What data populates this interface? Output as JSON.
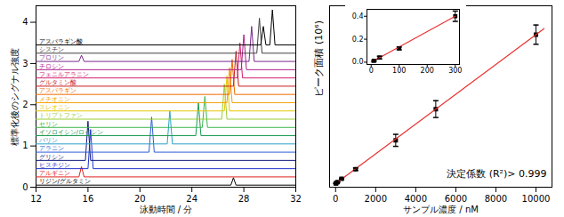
{
  "chart_data": [
    {
      "type": "line",
      "x_label": "泳動時間 / 分",
      "y_label": "標準化後のシグナル強度",
      "xlim": [
        12,
        32
      ],
      "xticks": [
        12,
        16,
        20,
        24,
        28,
        32
      ],
      "ylim": [
        0,
        4.4
      ],
      "yticks": [
        0,
        1,
        2,
        3,
        4
      ],
      "series": [
        {
          "name": "リジン/グルタミン",
          "color": "#000000",
          "x": [
            12,
            27.0,
            27.2,
            27.4,
            32
          ],
          "values": [
            0.05,
            0.05,
            0.23,
            0.05,
            0.05
          ]
        },
        {
          "name": "アルギニン",
          "color": "#e0201b",
          "x": [
            12,
            15.3,
            15.5,
            15.7,
            32
          ],
          "values": [
            0.25,
            0.25,
            0.5,
            0.25,
            0.25
          ]
        },
        {
          "name": "ヒスチジン",
          "color": "#2233cc",
          "x": [
            12,
            16.0,
            16.2,
            16.4,
            32
          ],
          "values": [
            0.45,
            0.45,
            1.4,
            0.45,
            0.45
          ]
        },
        {
          "name": "グリシン",
          "color": "#101a7a",
          "x": [
            12,
            15.8,
            16.0,
            16.2,
            32
          ],
          "values": [
            0.65,
            0.65,
            1.6,
            0.65,
            0.65
          ]
        },
        {
          "name": "アラニン",
          "color": "#2a5cd6",
          "x": [
            12,
            20.7,
            20.9,
            21.1,
            32
          ],
          "values": [
            0.85,
            0.85,
            1.7,
            0.85,
            0.85
          ]
        },
        {
          "name": "バリン",
          "color": "#2aa0c8",
          "x": [
            12,
            22.1,
            22.3,
            22.5,
            32
          ],
          "values": [
            1.05,
            1.05,
            1.85,
            1.05,
            1.05
          ]
        },
        {
          "name": "イソロイシン/ロイシン",
          "color": "#1a9a50",
          "x": [
            12,
            24.3,
            24.5,
            24.7,
            32
          ],
          "values": [
            1.25,
            1.25,
            2.05,
            1.25,
            1.25
          ]
        },
        {
          "name": "セリン",
          "color": "#3cb44b",
          "x": [
            12,
            24.8,
            25.0,
            25.2,
            32
          ],
          "values": [
            1.45,
            1.45,
            2.2,
            1.45,
            1.45
          ]
        },
        {
          "name": "トリプトファン",
          "color": "#9acd32",
          "x": [
            12,
            26.3,
            26.5,
            26.7,
            32
          ],
          "values": [
            1.65,
            1.65,
            2.5,
            1.65,
            1.65
          ]
        },
        {
          "name": "スレオニン",
          "color": "#e6c700",
          "x": [
            12,
            26.5,
            26.7,
            26.9,
            32
          ],
          "values": [
            1.85,
            1.85,
            2.7,
            1.85,
            1.85
          ]
        },
        {
          "name": "メチオニン",
          "color": "#f5a000",
          "x": [
            12,
            26.7,
            26.9,
            27.1,
            32
          ],
          "values": [
            2.05,
            2.05,
            2.9,
            2.05,
            2.05
          ]
        },
        {
          "name": "アスパラギン",
          "color": "#f06a00",
          "x": [
            12,
            26.9,
            27.1,
            27.3,
            32
          ],
          "values": [
            2.25,
            2.25,
            3.1,
            2.25,
            2.25
          ]
        },
        {
          "name": "グルタミン酸",
          "color": "#c81e1e",
          "x": [
            12,
            27.2,
            27.4,
            27.6,
            32
          ],
          "values": [
            2.45,
            2.45,
            3.3,
            2.45,
            2.45
          ]
        },
        {
          "name": "フェニルアラニン",
          "color": "#d0206e",
          "x": [
            12,
            27.5,
            27.7,
            27.9,
            32
          ],
          "values": [
            2.65,
            2.65,
            3.5,
            2.65,
            2.65
          ]
        },
        {
          "name": "チロシン",
          "color": "#b0208c",
          "x": [
            12,
            27.8,
            28.0,
            28.2,
            32
          ],
          "values": [
            2.85,
            2.85,
            3.7,
            2.85,
            2.85
          ]
        },
        {
          "name": "プロリン",
          "color": "#7a2a8a",
          "x": [
            12,
            15.3,
            15.5,
            15.7,
            28.4,
            28.6,
            28.8,
            32
          ],
          "values": [
            3.05,
            3.05,
            3.2,
            3.05,
            3.05,
            3.9,
            3.05,
            3.05
          ]
        },
        {
          "name": "シスチン",
          "color": "#404040",
          "x": [
            12,
            29.0,
            29.2,
            29.4,
            32
          ],
          "values": [
            3.25,
            3.25,
            4.1,
            3.25,
            3.25
          ]
        },
        {
          "name": "アスパラギン酸",
          "color": "#000000",
          "x": [
            12,
            29.3,
            29.5,
            29.7,
            30.0,
            30.2,
            30.4,
            32
          ],
          "values": [
            3.45,
            3.45,
            3.9,
            3.45,
            3.45,
            4.3,
            3.45,
            3.45
          ]
        }
      ]
    },
    {
      "type": "scatter",
      "x_label": "サンプル濃度 / nM",
      "y_label": "ピーク面積 (10⁶)",
      "annotation": "決定係数 (R²)> 0.999",
      "xlim": [
        -300,
        10800
      ],
      "xticks": [
        0,
        2000,
        4000,
        6000,
        8000,
        10000
      ],
      "ylim": [
        -0.03,
        1.48
      ],
      "tick_labels": "x",
      "series": [
        {
          "type": "scatter",
          "color": "#000000",
          "marker": "square",
          "x": [
            10,
            30,
            100,
            300,
            1000,
            3000,
            5000,
            10000
          ],
          "values": [
            0.001,
            0.004,
            0.012,
            0.04,
            0.12,
            0.36,
            0.62,
            1.24
          ],
          "errors": [
            0.002,
            0.003,
            0.004,
            0.006,
            0.01,
            0.05,
            0.07,
            0.08
          ]
        },
        {
          "type": "line",
          "color": "#e8312f",
          "x": [
            0,
            10400
          ],
          "values": [
            0,
            1.29
          ]
        }
      ]
    },
    {
      "type": "scatter",
      "xlim": [
        -15,
        315
      ],
      "xticks": [
        0,
        100,
        200,
        300
      ],
      "ylim": [
        -0.02,
        0.46
      ],
      "yticks": [
        {
          "value": 0,
          "label": "0.0"
        },
        {
          "value": 0.2,
          "label": "0.2"
        },
        {
          "value": 0.4,
          "label": "0.4"
        }
      ],
      "series": [
        {
          "type": "scatter",
          "color": "#000000",
          "marker": "square",
          "x": [
            10,
            30,
            100,
            300
          ],
          "values": [
            0.012,
            0.04,
            0.12,
            0.4
          ],
          "errors": [
            0.006,
            0.012,
            0.012,
            0.045
          ]
        },
        {
          "type": "line",
          "color": "#e8312f",
          "x": [
            0,
            300
          ],
          "values": [
            0,
            0.4
          ]
        }
      ]
    }
  ]
}
